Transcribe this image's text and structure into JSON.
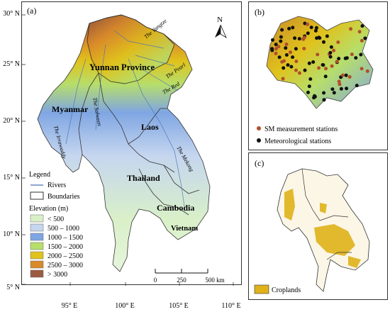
{
  "panel_a": {
    "label": "(a)",
    "north": "N",
    "lat_labels": [
      "30° N",
      "25° N",
      "20° N",
      "15° N",
      "10° N",
      "5° N"
    ],
    "lon_labels": [
      "95° E",
      "100° E",
      "105° E",
      "110° E"
    ],
    "regions": [
      "Yunnan Province",
      "Myanmar",
      "Laos",
      "Thailand",
      "Cambodia",
      "Vietnam"
    ],
    "rivers": [
      "The Yangtze",
      "The Pearl",
      "The Red",
      "The Salween",
      "The Irrawaddy",
      "The Mekong"
    ],
    "legend": {
      "title": "Legend",
      "rivers": "Rivers",
      "boundaries": "Boundaries",
      "elevation_title": "Elevation (m)",
      "classes": [
        {
          "label": "< 500",
          "color": "#d9f0c8"
        },
        {
          "label": "500 – 1000",
          "color": "#c6d6ef"
        },
        {
          "label": "1000 – 1500",
          "color": "#7fa6e3"
        },
        {
          "label": "1500 – 2000",
          "color": "#b7de6a"
        },
        {
          "label": "2000 – 2500",
          "color": "#e0c21c"
        },
        {
          "label": "2500 – 3000",
          "color": "#d98a2a"
        },
        {
          "label": "> 3000",
          "color": "#9b5b40"
        }
      ]
    },
    "scale": {
      "labels": [
        "0",
        "250",
        "500 km"
      ]
    }
  },
  "panel_b": {
    "label": "(b)",
    "legend": [
      {
        "label": "SM measurement stations",
        "color": "#b0502a"
      },
      {
        "label": "Meteorological stations",
        "color": "#111111"
      }
    ]
  },
  "panel_c": {
    "label": "(c)",
    "legend": [
      {
        "label": "Croplands",
        "color": "#e0b21a"
      }
    ]
  }
}
